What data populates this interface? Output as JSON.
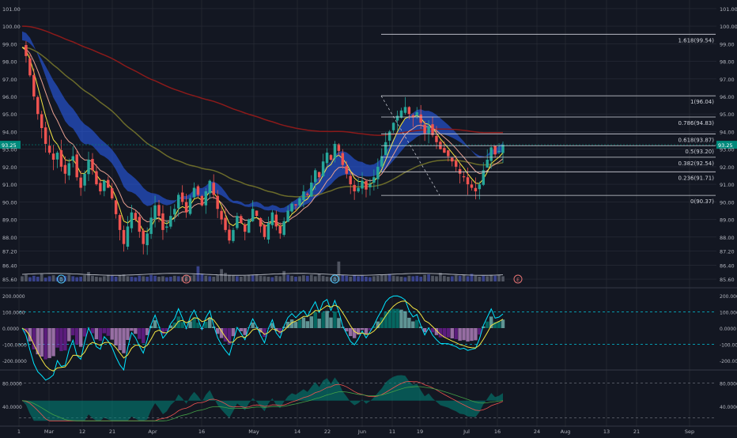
{
  "colors": {
    "bg": "#131722",
    "grid": "#2a2e39",
    "text": "#b2b5be",
    "up": "#26a69a",
    "down": "#ef5350",
    "fib": "#d1d4dc",
    "ribbonBlue": "#2962ff",
    "ribbonTeal": "#26c6da",
    "maRed": "#8b1a1a",
    "maOlive": "#6b6b2a",
    "maYellow": "#f5e642",
    "maPink": "#e8a090",
    "cyan": "#00e5ff",
    "purple": "#7b1fa2",
    "teal": "#00897b",
    "olive": "#9e9d24",
    "accentLabel": "#00897b"
  },
  "chart_data": [
    {
      "type": "candlestick",
      "title": "",
      "price_axis_labels": [
        "101.00",
        "100.00",
        "99.00",
        "98.00",
        "97.00",
        "96.00",
        "95.00",
        "94.00",
        "93.00",
        "92.00",
        "91.00",
        "90.00",
        "89.00",
        "88.00",
        "87.20",
        "86.40",
        "85.60"
      ],
      "price_axis_values": [
        101,
        100,
        99,
        98,
        97,
        96,
        95,
        94,
        93,
        92,
        91,
        90,
        89,
        88,
        87.2,
        86.4,
        85.6
      ],
      "current_price_label": "93.25",
      "current_price": 93.25,
      "ylim": [
        85.2,
        101.4
      ],
      "x_axis_labels": [
        "1",
        "Mar",
        "12",
        "21",
        "Apr",
        "16",
        "May",
        "14",
        "22",
        "Jun",
        "11",
        "19",
        "Jul",
        "16",
        "24",
        "Aug",
        "13",
        "21",
        "Sep"
      ],
      "fib_levels": [
        {
          "label": "1.618(99.54)",
          "value": 99.54
        },
        {
          "label": "1(96.04)",
          "value": 96.04
        },
        {
          "label": "0.786(94.83)",
          "value": 94.83
        },
        {
          "label": "0.618(93.87)",
          "value": 93.87
        },
        {
          "label": "0.5(93.20)",
          "value": 93.2
        },
        {
          "label": "0.382(92.54)",
          "value": 92.54
        },
        {
          "label": "0.236(91.71)",
          "value": 91.71
        },
        {
          "label": "0(90.37)",
          "value": 90.37
        }
      ],
      "price_path": [
        98.8,
        98.3,
        97.2,
        96.0,
        95.0,
        94.2,
        93.3,
        92.8,
        92.4,
        92.8,
        92.0,
        91.6,
        92.2,
        92.6,
        91.4,
        90.8,
        91.6,
        92.4,
        91.8,
        91.0,
        90.6,
        91.2,
        90.8,
        90.2,
        89.3,
        88.4,
        87.6,
        88.6,
        89.4,
        89.0,
        88.3,
        87.6,
        88.2,
        89.1,
        89.8,
        89.2,
        88.4,
        88.6,
        89.2,
        89.6,
        90.4,
        90.0,
        89.4,
        90.2,
        90.8,
        90.4,
        89.8,
        90.6,
        91.2,
        90.4,
        89.6,
        89.0,
        88.4,
        87.8,
        88.4,
        89.2,
        88.8,
        88.3,
        89.0,
        89.6,
        89.2,
        88.6,
        88.0,
        88.8,
        89.4,
        88.6,
        88.2,
        88.9,
        89.5,
        89.9,
        89.8,
        90.2,
        90.6,
        90.4,
        91.1,
        91.8,
        91.4,
        92.3,
        92.8,
        92.4,
        93.3,
        92.9,
        92.1,
        91.6,
        91.0,
        90.6,
        90.8,
        91.2,
        90.7,
        91.0,
        91.4,
        92.0,
        92.6,
        93.4,
        94.0,
        94.5,
        94.9,
        95.2,
        95.4,
        95.0,
        94.8,
        95.1,
        94.5,
        93.9,
        94.3,
        93.8,
        93.4,
        93.0,
        92.8,
        92.6,
        92.3,
        92.0,
        91.6,
        91.4,
        91.0,
        90.8,
        90.6,
        91.0,
        91.8,
        92.4,
        93.1,
        92.7,
        92.9,
        93.25
      ],
      "volume_levels": [
        0.55,
        0.7,
        0.45,
        0.6,
        0.5,
        0.8,
        0.4,
        0.55,
        0.65,
        0.45,
        0.5,
        0.6,
        0.7,
        0.55,
        0.45,
        0.5,
        0.65,
        1.0,
        0.6,
        0.5,
        0.45,
        0.55,
        0.7,
        0.6,
        0.5,
        0.65,
        0.75,
        0.55,
        0.5,
        0.45,
        0.6,
        0.55,
        0.5,
        0.7,
        0.6,
        0.5,
        0.55,
        0.45,
        0.5,
        0.6,
        0.55,
        0.5,
        0.65,
        0.6,
        0.7,
        1.6,
        0.8,
        0.6,
        0.55,
        0.5,
        0.65,
        1.3,
        0.9,
        0.7,
        0.6,
        0.55,
        0.5,
        0.6,
        0.7,
        0.65,
        0.75,
        0.6,
        0.55,
        0.5,
        0.45,
        0.6,
        0.55,
        1.1,
        0.7,
        0.6,
        0.5,
        0.55,
        0.65,
        0.6,
        0.7,
        0.55,
        0.8,
        0.6,
        0.5,
        0.45,
        0.55,
        2.1,
        0.7,
        0.6,
        0.5,
        0.65,
        0.55,
        0.6,
        0.5,
        0.45,
        0.55,
        0.6,
        0.7,
        0.65,
        0.8,
        0.6,
        0.55,
        0.5,
        0.45,
        0.6,
        0.55,
        0.6,
        0.5,
        0.7,
        0.75,
        0.6,
        0.55,
        0.9,
        0.6,
        0.5,
        0.55,
        0.65,
        0.6,
        0.7,
        0.55,
        0.8,
        0.6,
        0.5,
        0.6,
        0.55,
        0.7,
        0.6,
        0.65,
        0.55
      ],
      "event_markers": [
        {
          "label": "D",
          "index": 10
        },
        {
          "label": "E",
          "index": 42
        },
        {
          "label": "D",
          "index": 80
        },
        {
          "label": "E",
          "index": 157
        }
      ]
    },
    {
      "type": "oscillator",
      "axis_labels": [
        "200.0000",
        "100.0000",
        "0.0000",
        "-100.0000",
        "-200.0000"
      ],
      "axis_values": [
        200,
        100,
        0,
        -100,
        -200
      ],
      "ylim": [
        -240,
        240
      ],
      "reference_lines": [
        100,
        -100
      ]
    },
    {
      "type": "oscillator",
      "axis_labels": [
        "80.0000",
        "40.0000"
      ],
      "axis_values": [
        80,
        40
      ],
      "ylim": [
        10,
        100
      ],
      "reference_lines": [
        80,
        20
      ]
    }
  ]
}
